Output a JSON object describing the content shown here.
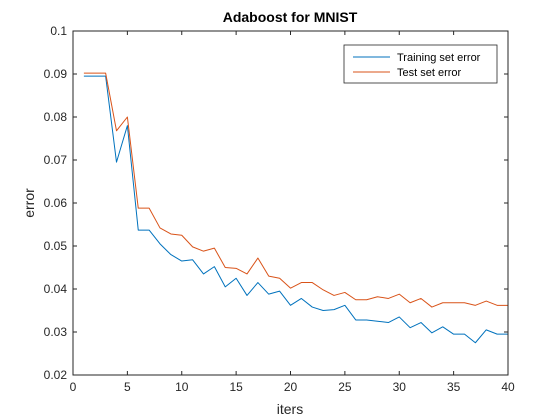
{
  "chart_data": {
    "type": "line",
    "title": "Adaboost for MNIST",
    "xlabel": "iters",
    "ylabel": "error",
    "xlim": [
      0,
      40
    ],
    "ylim": [
      0.02,
      0.1
    ],
    "xticks": [
      0,
      5,
      10,
      15,
      20,
      25,
      30,
      35,
      40
    ],
    "xtick_labels": [
      "0",
      "5",
      "10",
      "15",
      "20",
      "25",
      "30",
      "35",
      "40"
    ],
    "yticks": [
      0.02,
      0.03,
      0.04,
      0.05,
      0.06,
      0.07,
      0.08,
      0.09,
      0.1
    ],
    "ytick_labels": [
      "0.02",
      "0.03",
      "0.04",
      "0.05",
      "0.06",
      "0.07",
      "0.08",
      "0.09",
      "0.1"
    ],
    "grid": false,
    "legend_position": "top-right",
    "x": [
      1,
      2,
      3,
      4,
      5,
      6,
      7,
      8,
      9,
      10,
      11,
      12,
      13,
      14,
      15,
      16,
      17,
      18,
      19,
      20,
      21,
      22,
      23,
      24,
      25,
      26,
      27,
      28,
      29,
      30,
      31,
      32,
      33,
      34,
      35,
      36,
      37,
      38,
      39,
      40
    ],
    "series": [
      {
        "name": "Training set error",
        "color": "#0072bd",
        "values": [
          0.0895,
          0.0895,
          0.0895,
          0.0695,
          0.078,
          0.0537,
          0.0537,
          0.0505,
          0.048,
          0.0465,
          0.0468,
          0.0435,
          0.0452,
          0.0405,
          0.0425,
          0.0385,
          0.0415,
          0.0388,
          0.0395,
          0.0362,
          0.0378,
          0.0358,
          0.035,
          0.0352,
          0.0362,
          0.0328,
          0.0328,
          0.0325,
          0.0322,
          0.0335,
          0.031,
          0.0322,
          0.0298,
          0.0312,
          0.0295,
          0.0295,
          0.0275,
          0.0305,
          0.0295,
          0.0295
        ]
      },
      {
        "name": "Test set error",
        "color": "#d95319",
        "values": [
          0.0902,
          0.0902,
          0.0902,
          0.0768,
          0.08,
          0.0588,
          0.0588,
          0.0542,
          0.0528,
          0.0525,
          0.0498,
          0.0488,
          0.0495,
          0.045,
          0.0448,
          0.0435,
          0.0472,
          0.043,
          0.0425,
          0.0402,
          0.0415,
          0.0415,
          0.0398,
          0.0385,
          0.0392,
          0.0375,
          0.0375,
          0.0382,
          0.0378,
          0.0388,
          0.0368,
          0.0378,
          0.0358,
          0.0368,
          0.0368,
          0.0368,
          0.0362,
          0.0372,
          0.0362,
          0.0362
        ]
      }
    ]
  }
}
